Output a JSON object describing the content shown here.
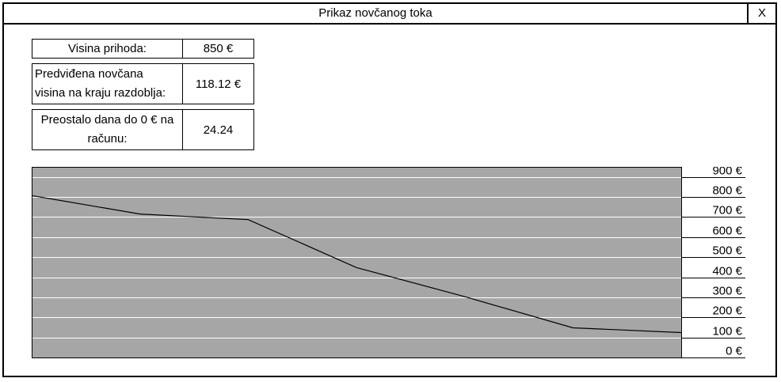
{
  "window": {
    "title": "Prikaz novčanog toka",
    "close_label": "X"
  },
  "summary": {
    "income_label": "Visina prihoda:",
    "income_value": "850 €",
    "projected_label_line1": "Predviđena novčana",
    "projected_label_line2": "visina na kraju razdoblja:",
    "projected_value": "118.12 €",
    "days_label_line1": "Preostalo dana do 0 € na",
    "days_label_line2": "računu:",
    "days_value": "24.24"
  },
  "chart_data": {
    "type": "line",
    "title": "",
    "xlabel": "",
    "ylabel": "",
    "ylim": [
      0,
      950
    ],
    "grid": true,
    "yticks": [
      0,
      100,
      200,
      300,
      400,
      500,
      600,
      700,
      800,
      900
    ],
    "ytick_labels": [
      "0 €",
      "100 €",
      "200 €",
      "300 €",
      "400 €",
      "500 €",
      "600 €",
      "700 €",
      "800 €",
      "900 €"
    ],
    "x": [
      0,
      1,
      2,
      3,
      4,
      5,
      6
    ],
    "values": [
      807,
      715,
      687,
      448,
      303,
      148,
      124
    ],
    "colors": {
      "plot_background": "#a6a6a6",
      "gridline": "#ffffff",
      "line": "#000000"
    }
  }
}
